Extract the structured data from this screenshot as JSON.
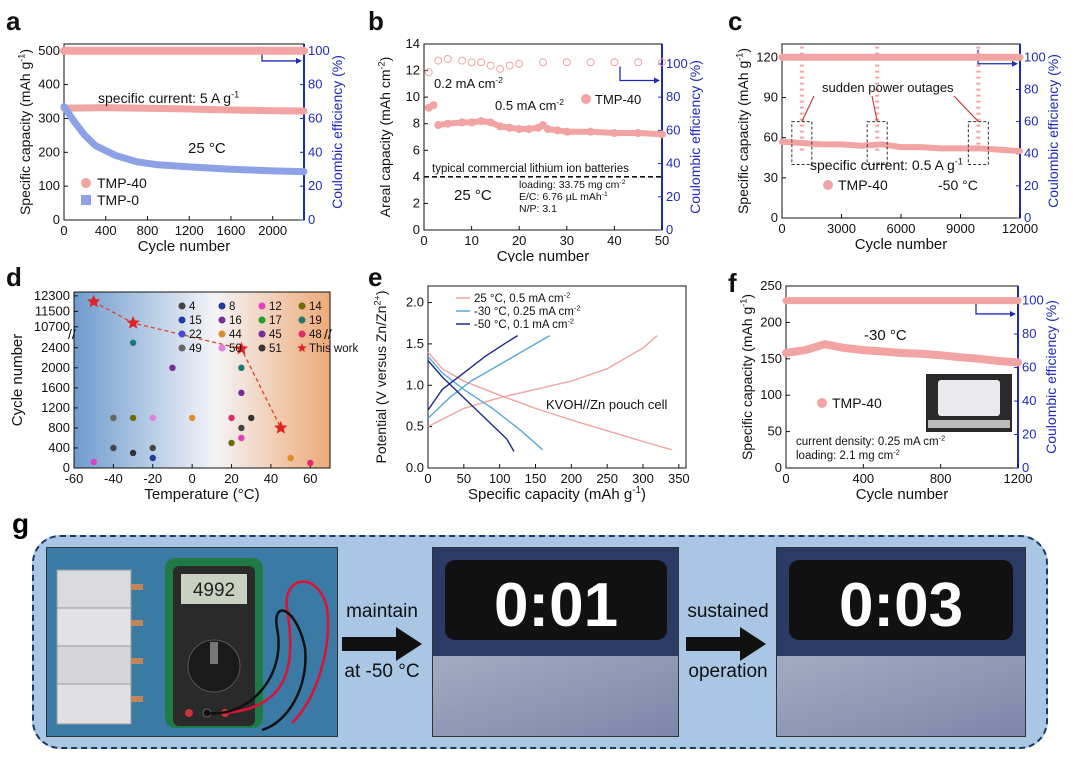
{
  "panels": {
    "a": {
      "letter": "a",
      "title_texts": {
        "current": "specific current: 5 A g",
        "current_sup": "-1",
        "temp": "25 °C"
      },
      "legend": [
        "TMP-40",
        "TMP-0"
      ],
      "chart_data": {
        "type": "line",
        "xlabel": "Cycle number",
        "ylabel_left": "Specific capacity (mAh g",
        "ylabel_left_sup": "-1",
        "ylabel_left_end": ")",
        "ylabel_right": "Coulombic efficiency (%)",
        "xlim": [
          0,
          2300
        ],
        "ylim": [
          0,
          520
        ],
        "ylim_right": [
          0,
          104
        ],
        "xticks": [
          "0",
          "400",
          "800",
          "1200",
          "1600",
          "2000"
        ],
        "yticks": [
          "0",
          "100",
          "200",
          "300",
          "400",
          "500"
        ],
        "yticks_right": [
          "0",
          "20",
          "40",
          "60",
          "80",
          "100"
        ],
        "series": [
          {
            "name": "TMP-40",
            "color": "#f2a3a3",
            "x": [
              0,
              400,
              800,
              1200,
              1600,
              2000,
              2300
            ],
            "y": [
              330,
              332,
              330,
              328,
              325,
              323,
              322
            ]
          },
          {
            "name": "TMP-0",
            "color": "#8da2e6",
            "x": [
              0,
              100,
              200,
              300,
              500,
              700,
              900,
              1200,
              1600,
              2000,
              2300
            ],
            "y": [
              335,
              290,
              250,
              220,
              190,
              172,
              163,
              157,
              150,
              145,
              143
            ]
          },
          {
            "name": "CE",
            "color": "#f2a3a3",
            "x": [
              0,
              2300
            ],
            "y": [
              100,
              100
            ]
          }
        ]
      }
    },
    "b": {
      "letter": "b",
      "labels": {
        "rate1": "0.2 mA cm",
        "rate1_sup": "-2",
        "rate2": "0.5 mA cm",
        "rate2_sup": "-2",
        "legend": "TMP-40",
        "commercial": "typical commercial lithium ion batteries",
        "temp": "25 °C",
        "loading": "loading: 33.75 mg cm",
        "loading_sup": "-2",
        "ec": "E/C: 6.76 µL mAh",
        "ec_sup": "-1",
        "np": "N/P: 3.1"
      },
      "chart_data": {
        "type": "scatter",
        "xlabel": "Cycle number",
        "ylabel_left": "Areal capacity (mAh cm",
        "ylabel_left_sup": "-2",
        "ylabel_left_end": ")",
        "ylabel_right": "Coulombic efficiency (%)",
        "xlim": [
          0,
          50
        ],
        "ylim": [
          0,
          14
        ],
        "ylim_right": [
          0,
          112
        ],
        "xticks": [
          "0",
          "10",
          "20",
          "30",
          "40",
          "50"
        ],
        "yticks": [
          "0",
          "2",
          "4",
          "6",
          "8",
          "10",
          "12",
          "14"
        ],
        "yticks_right": [
          "0",
          "20",
          "40",
          "60",
          "80",
          "100"
        ],
        "reference_line": 4,
        "series": [
          {
            "name": "TMP-40",
            "color": "#f2a3a3",
            "x": [
              1,
              2,
              3,
              5,
              8,
              10,
              12,
              14,
              16,
              18,
              20,
              22,
              24,
              25,
              26,
              28,
              30,
              35,
              40,
              45,
              50
            ],
            "y": [
              9.2,
              9.4,
              7.9,
              8.0,
              8.1,
              8.1,
              8.2,
              8.1,
              7.8,
              7.7,
              7.6,
              7.6,
              7.7,
              7.9,
              7.6,
              7.5,
              7.4,
              7.4,
              7.3,
              7.3,
              7.2
            ]
          },
          {
            "name": "CE",
            "color": "#f2a3a3",
            "x": [
              1,
              3,
              5,
              8,
              10,
              12,
              14,
              16,
              18,
              20,
              25,
              30,
              35,
              40,
              45,
              50
            ],
            "y": [
              95,
              102,
              103,
              102,
              101,
              101,
              99,
              97,
              99,
              100,
              101,
              101,
              101,
              101,
              101,
              101
            ]
          }
        ]
      }
    },
    "c": {
      "letter": "c",
      "labels": {
        "outage": "sudden power outages",
        "current": "specific current: 0.5 A g",
        "current_sup": "-1",
        "legend": "TMP-40",
        "temp": "-50 °C"
      },
      "chart_data": {
        "type": "scatter",
        "xlabel": "Cycle number",
        "ylabel_left": "Specific capacity (mAh g",
        "ylabel_left_sup": "-1",
        "ylabel_left_end": ")",
        "ylabel_right": "Coulombic efficiency (%)",
        "xlim": [
          0,
          12000
        ],
        "ylim": [
          0,
          130
        ],
        "ylim_right": [
          0,
          108.3
        ],
        "xticks": [
          "0",
          "3000",
          "6000",
          "9000",
          "12000"
        ],
        "yticks": [
          "0",
          "30",
          "60",
          "90",
          "120"
        ],
        "yticks_right": [
          "0",
          "20",
          "40",
          "60",
          "80",
          "100"
        ],
        "series": [
          {
            "name": "TMP-40",
            "color": "#f2a3a3",
            "x": [
              0,
              1000,
              2000,
              3000,
              4000,
              5000,
              6000,
              7000,
              8000,
              9000,
              10000,
              11000,
              12000
            ],
            "y": [
              57,
              56,
              55,
              55,
              54,
              55,
              53,
              53,
              52,
              52,
              52,
              51,
              50
            ]
          },
          {
            "name": "CE",
            "color": "#f2a3a3",
            "x": [
              0,
              12000
            ],
            "y": [
              100,
              100
            ]
          }
        ]
      }
    },
    "d": {
      "letter": "d",
      "chart_data": {
        "type": "scatter",
        "xlabel": "Temperature (°C)",
        "ylabel": "Cycle number",
        "xlim": [
          -60,
          70
        ],
        "xticks": [
          "-60",
          "-40",
          "-20",
          "0",
          "20",
          "40",
          "60"
        ],
        "yticks": [
          "0",
          "400",
          "800",
          "1200",
          "1600",
          "2000",
          "2400",
          "10700",
          "11500",
          "12300"
        ],
        "legend": [
          "4",
          "8",
          "12",
          "14",
          "15",
          "16",
          "17",
          "19",
          "22",
          "44",
          "45",
          "48",
          "49",
          "50",
          "51",
          "This work"
        ],
        "this_work": {
          "x": [
            -50,
            -30,
            25,
            45
          ],
          "y": [
            12000,
            10900,
            2380,
            800
          ]
        },
        "literature": [
          {
            "ref": "12",
            "x": -50,
            "y": 120
          },
          {
            "ref": "4",
            "x": -40,
            "y": 400
          },
          {
            "ref": "14",
            "x": -40,
            "y": 1000
          },
          {
            "ref": "49",
            "x": -40,
            "y": 1000
          },
          {
            "ref": "51",
            "x": -30,
            "y": 300
          },
          {
            "ref": "19",
            "x": -30,
            "y": 2500
          },
          {
            "ref": "14",
            "x": -30,
            "y": 1000
          },
          {
            "ref": "4",
            "x": -20,
            "y": 400
          },
          {
            "ref": "8",
            "x": -20,
            "y": 200
          },
          {
            "ref": "50",
            "x": -20,
            "y": 1000
          },
          {
            "ref": "16",
            "x": -10,
            "y": 2000
          },
          {
            "ref": "44",
            "x": 0,
            "y": 1000
          },
          {
            "ref": "19",
            "x": 25,
            "y": 2000
          },
          {
            "ref": "45",
            "x": 25,
            "y": 1500
          },
          {
            "ref": "50",
            "x": 20,
            "y": 1000
          },
          {
            "ref": "48",
            "x": 20,
            "y": 1000
          },
          {
            "ref": "14",
            "x": 20,
            "y": 500
          },
          {
            "ref": "4",
            "x": 25,
            "y": 800
          },
          {
            "ref": "44",
            "x": 25,
            "y": 600
          },
          {
            "ref": "12",
            "x": 25,
            "y": 600
          },
          {
            "ref": "51",
            "x": 30,
            "y": 1000
          },
          {
            "ref": "44",
            "x": 50,
            "y": 200
          },
          {
            "ref": "48",
            "x": 60,
            "y": 100
          }
        ]
      }
    },
    "e": {
      "letter": "e",
      "labels": {
        "cell": "KVOH//Zn pouch cell"
      },
      "chart_data": {
        "type": "line",
        "xlabel": "Specific capacity (mAh g",
        "xlabel_sup": "-1",
        "xlabel_end": ")",
        "ylabel": "Potential (V versus Zn/Zn",
        "ylabel_sup": "2+",
        "ylabel_end": ")",
        "xlim": [
          0,
          360
        ],
        "ylim": [
          0,
          2.2
        ],
        "xticks": [
          "0",
          "50",
          "100",
          "150",
          "200",
          "250",
          "300",
          "350"
        ],
        "yticks": [
          "0.0",
          "0.5",
          "1.0",
          "1.5",
          "2.0"
        ],
        "legend_texts": [
          "25 °C, 0.5 mA cm",
          "-30 °C, 0.25 mA cm",
          "-50 °C, 0.1 mA cm"
        ],
        "legend_sup": "-2",
        "series": [
          {
            "name": "25 °C, 0.5 mA cm-2 charge",
            "color": "#f2a3a3",
            "x": [
              0,
              50,
              100,
              150,
              200,
              250,
              300,
              320
            ],
            "y": [
              0.5,
              0.72,
              0.85,
              0.95,
              1.05,
              1.2,
              1.45,
              1.6
            ]
          },
          {
            "name": "25 °C, 0.5 mA cm-2 discharge",
            "color": "#f2a3a3",
            "x": [
              0,
              20,
              50,
              100,
              150,
              200,
              250,
              300,
              340
            ],
            "y": [
              1.4,
              1.2,
              1.05,
              0.88,
              0.72,
              0.58,
              0.45,
              0.32,
              0.22
            ]
          },
          {
            "name": "-30 °C, 0.25 mA cm-2 charge",
            "color": "#5aa9d6",
            "x": [
              0,
              30,
              60,
              100,
              140,
              170
            ],
            "y": [
              0.6,
              0.85,
              1.05,
              1.25,
              1.45,
              1.6
            ]
          },
          {
            "name": "-30 °C, 0.25 mA cm-2 discharge",
            "color": "#5aa9d6",
            "x": [
              0,
              20,
              50,
              90,
              130,
              160
            ],
            "y": [
              1.35,
              1.15,
              0.95,
              0.72,
              0.45,
              0.22
            ]
          },
          {
            "name": "-50 °C, 0.1 mA cm-2 charge",
            "color": "#1e2a8a",
            "x": [
              0,
              20,
              50,
              80,
              110,
              125
            ],
            "y": [
              0.7,
              0.95,
              1.15,
              1.35,
              1.52,
              1.6
            ]
          },
          {
            "name": "-50 °C, 0.1 mA cm-2 discharge",
            "color": "#1e2a8a",
            "x": [
              0,
              20,
              50,
              80,
              110,
              120
            ],
            "y": [
              1.3,
              1.1,
              0.85,
              0.6,
              0.35,
              0.2
            ]
          }
        ]
      }
    },
    "f": {
      "letter": "f",
      "labels": {
        "temp": "-30 °C",
        "legend": "TMP-40",
        "density": "current density: 0.25 mA cm",
        "density_sup": "-2",
        "loading": "loading: 2.1 mg cm",
        "loading_sup": "-2"
      },
      "chart_data": {
        "type": "scatter",
        "xlabel": "Cycle number",
        "ylabel_left": "Specific capacity (mAh g",
        "ylabel_left_sup": "-1",
        "ylabel_left_end": ")",
        "ylabel_right": "Coulombic efficiency (%)",
        "xlim": [
          0,
          1200
        ],
        "ylim": [
          0,
          250
        ],
        "ylim_right": [
          0,
          108.7
        ],
        "xticks": [
          "0",
          "400",
          "800",
          "1200"
        ],
        "yticks": [
          "0",
          "50",
          "100",
          "150",
          "200",
          "250"
        ],
        "yticks_right": [
          "0",
          "20",
          "40",
          "60",
          "80",
          "100"
        ],
        "series": [
          {
            "name": "TMP-40",
            "color": "#f2a3a3",
            "x": [
              0,
              50,
              100,
              150,
              200,
              300,
              400,
              500,
              600,
              700,
              800,
              900,
              1000,
              1100,
              1200
            ],
            "y": [
              158,
              160,
              162,
              166,
              170,
              165,
              162,
              160,
              158,
              157,
              155,
              152,
              150,
              147,
              145
            ]
          },
          {
            "name": "CE",
            "color": "#f2a3a3",
            "x": [
              0,
              1200
            ],
            "y": [
              100,
              100
            ]
          }
        ]
      }
    },
    "g": {
      "letter": "g",
      "multimeter": "4992",
      "arrow1": [
        "maintain",
        "at -50 °C"
      ],
      "arrow2": [
        "sustained",
        "operation"
      ],
      "clock1": "0:01",
      "clock2": "0:03"
    }
  }
}
